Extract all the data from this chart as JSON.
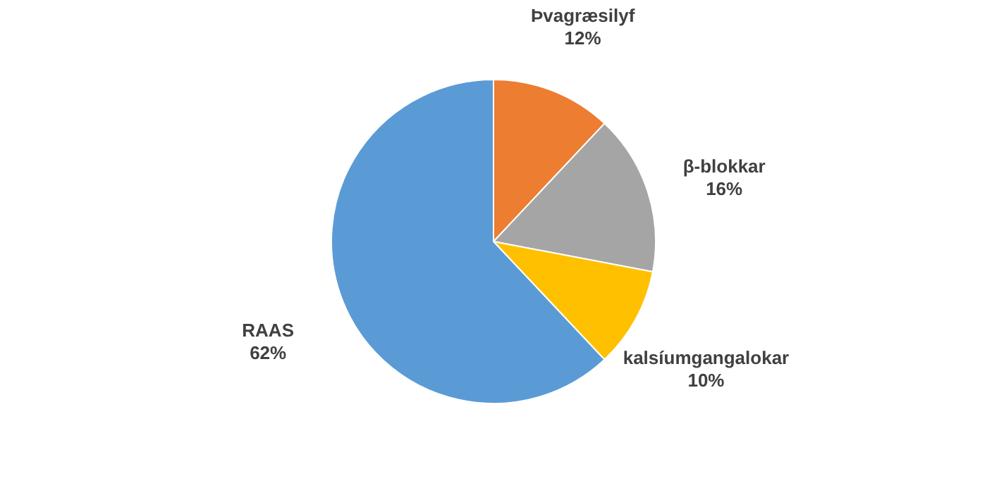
{
  "chart_data": {
    "type": "pie",
    "categories": [
      "Þvagræsilyf",
      "β-blokkar",
      "kalsíumgangalokar",
      "RAAS"
    ],
    "values": [
      12,
      16,
      10,
      62
    ],
    "colors": [
      "#ed7d31",
      "#a5a5a5",
      "#ffc000",
      "#5b9bd5"
    ],
    "value_labels": [
      "12%",
      "16%",
      "10%",
      "62%"
    ]
  }
}
